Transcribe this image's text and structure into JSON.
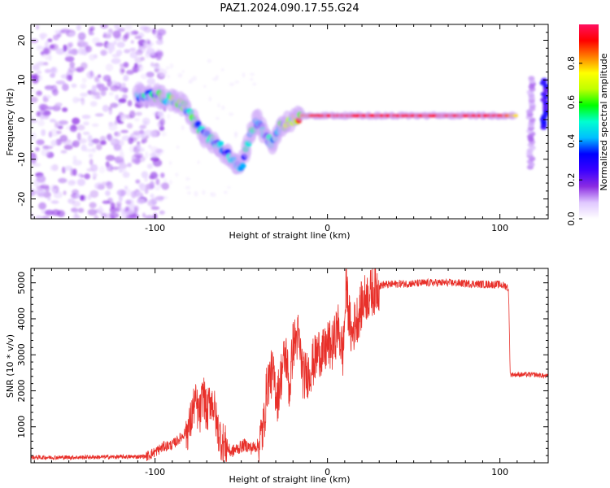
{
  "figure": {
    "title": "PAZ1.2024.090.17.55.G24"
  },
  "colorbar": {
    "label": "Normalized spectral amplitude",
    "ticks": [
      "0.0",
      "0.2",
      "0.4",
      "0.6",
      "0.8"
    ],
    "tick_values": [
      0.0,
      0.2,
      0.4,
      0.6,
      0.8
    ],
    "range": [
      0,
      1
    ],
    "colors": [
      "#ffffff",
      "#e0c8ff",
      "#8a2be2",
      "#3a00ff",
      "#0000ff",
      "#00bfff",
      "#00ffd0",
      "#00ff00",
      "#c0ff00",
      "#ffff00",
      "#ff8000",
      "#ff0000",
      "#ff1060"
    ]
  },
  "chart_data": [
    {
      "type": "heatmap",
      "title": "PAZ1.2024.090.17.55.G24",
      "xlabel": "Height of straight line (km)",
      "ylabel": "Frequency (Hz)",
      "xlim": [
        -172,
        128
      ],
      "ylim": [
        -25,
        24
      ],
      "x_ticks": [
        -100,
        0,
        100
      ],
      "x_tick_labels": [
        "-100",
        "0",
        "100"
      ],
      "y_ticks": [
        -20,
        -10,
        0,
        10,
        20
      ],
      "y_tick_labels": [
        "-20",
        "-10",
        "0",
        "10",
        "20"
      ],
      "noise_region_x": [
        -172,
        -100
      ],
      "ridge": {
        "x": [
          -110,
          -100,
          -90,
          -82,
          -75,
          -68,
          -62,
          -56,
          -50,
          -44,
          -40,
          -36,
          -32,
          -28,
          -24,
          -20,
          -15,
          -10,
          0,
          20,
          50,
          80,
          100,
          110
        ],
        "y": [
          6,
          6,
          5,
          3,
          -2,
          -5,
          -7,
          -10,
          -12,
          -3,
          0,
          -4,
          -6,
          -2,
          -1,
          0,
          1,
          1,
          1,
          1,
          1,
          1,
          1,
          1
        ],
        "amplitude": [
          0.45,
          0.5,
          0.55,
          0.55,
          0.5,
          0.45,
          0.42,
          0.45,
          0.4,
          0.5,
          0.45,
          0.42,
          0.45,
          0.55,
          0.65,
          0.75,
          0.85,
          0.9,
          0.95,
          0.95,
          0.95,
          0.95,
          0.95,
          0.75
        ]
      },
      "late_bands": [
        {
          "x": 118,
          "y_range": [
            -12,
            11
          ],
          "amplitude": 0.1
        },
        {
          "x": 126,
          "y_range": [
            -2,
            10
          ],
          "amplitude": 0.25
        }
      ],
      "colorbar_label": "Normalized spectral amplitude"
    },
    {
      "type": "line",
      "xlabel": "Height of straight line (km)",
      "ylabel": "SNR (10 * v/v)",
      "xlim": [
        -172,
        128
      ],
      "ylim": [
        0,
        5400
      ],
      "x_ticks": [
        -100,
        0,
        100
      ],
      "x_tick_labels": [
        "-100",
        "0",
        "100"
      ],
      "y_ticks": [
        1000,
        2000,
        3000,
        4000,
        5000
      ],
      "y_tick_labels": [
        "1000",
        "2000",
        "3000",
        "4000",
        "5000"
      ],
      "color": "#e8302a",
      "series": [
        {
          "x": [
            -172,
            -150,
            -130,
            -110,
            -105,
            -100,
            -95,
            -90,
            -85,
            -80,
            -77,
            -74,
            -72,
            -70,
            -68,
            -66,
            -64,
            -62,
            -60,
            -58,
            -56,
            -52,
            -48,
            -44,
            -40,
            -37,
            -35,
            -32,
            -29,
            -26,
            -24,
            -22,
            -20,
            -17,
            -14,
            -11,
            -8,
            -5,
            -2,
            0,
            3,
            6,
            9,
            11,
            12,
            14,
            16,
            18,
            20,
            22,
            25,
            28,
            32,
            36,
            40,
            50,
            60,
            70,
            80,
            90,
            100,
            104,
            105,
            106,
            110,
            120,
            128
          ],
          "y": [
            150,
            150,
            160,
            170,
            180,
            300,
            450,
            500,
            700,
            1000,
            1700,
            1300,
            2000,
            1300,
            1800,
            1600,
            1000,
            700,
            500,
            400,
            300,
            400,
            500,
            400,
            500,
            1000,
            2200,
            2500,
            1800,
            2700,
            3000,
            2000,
            3300,
            3500,
            2400,
            2500,
            2800,
            3100,
            3000,
            3300,
            3200,
            3800,
            3000,
            5000,
            4300,
            3500,
            3900,
            4100,
            4400,
            4600,
            4700,
            4850,
            4950,
            4950,
            4970,
            4980,
            5000,
            5000,
            4980,
            4960,
            4950,
            4900,
            4800,
            2450,
            2450,
            2450,
            2400
          ]
        }
      ]
    }
  ]
}
